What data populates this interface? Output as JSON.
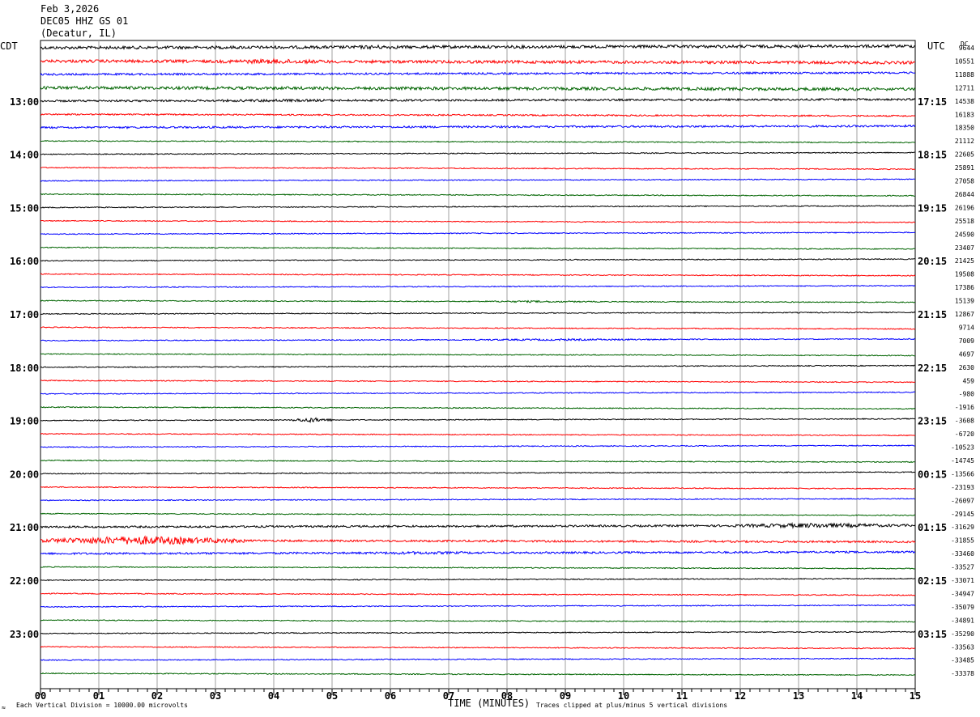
{
  "header": {
    "date": "Feb 3,2026",
    "station": "DEC05 HHZ GS 01",
    "location": "(Decatur, IL)"
  },
  "left_zone": "CDT",
  "right_zone": "UTC",
  "dc_label": "DC",
  "footer": {
    "scale_note": "Each Vertical Division = 10000.00 microvolts",
    "clip_note": "Traces clipped at plus/minus 5 vertical divisions",
    "credit_glyph": "≈"
  },
  "colors": {
    "trace_cycle": [
      "#000000",
      "#ff0000",
      "#0000ff",
      "#006400"
    ],
    "grid": "#a0a0a0"
  },
  "chart_data": {
    "type": "line",
    "title": "DEC05 HHZ GS 01",
    "xlabel": "TIME (MINUTES)",
    "ylabel": "",
    "xlim": [
      0,
      15
    ],
    "x_ticks": [
      "00",
      "01",
      "02",
      "03",
      "04",
      "05",
      "06",
      "07",
      "08",
      "09",
      "10",
      "11",
      "12",
      "13",
      "14",
      "15"
    ],
    "left_hour_labels": [
      "13:00",
      "14:00",
      "15:00",
      "16:00",
      "17:00",
      "18:00",
      "19:00",
      "20:00",
      "21:00",
      "22:00",
      "23:00"
    ],
    "right_hour_labels": [
      "17:15",
      "18:15",
      "19:15",
      "20:15",
      "21:15",
      "22:15",
      "23:15",
      "00:15",
      "01:15",
      "02:15",
      "03:15"
    ],
    "dc_offsets": [
      "9644",
      "10551",
      "11888",
      "12711",
      "14538",
      "16183",
      "18350",
      "21112",
      "22605",
      "25891",
      "27058",
      "26844",
      "26196",
      "25518",
      "24590",
      "23407",
      "21425",
      "19508",
      "17386",
      "15139",
      "12867",
      "9714",
      "7009",
      "4697",
      "2630",
      "459",
      "-980",
      "-1916",
      "-3608",
      "-6720",
      "-10523",
      "-14745",
      "-13566",
      "-23193",
      "-26097",
      "-29145",
      "-31629",
      "-31855",
      "-33460",
      "-33527",
      "-33071",
      "-34947",
      "-35079",
      "-34891",
      "-35290",
      "-33563",
      "-33485",
      "-33378"
    ],
    "trace_amplitude": [
      3,
      3,
      2,
      3,
      2,
      1.5,
      2,
      1,
      1,
      1,
      1,
      1,
      1,
      1,
      1,
      1,
      1,
      1,
      1,
      1,
      1,
      1,
      1,
      1,
      1,
      1,
      1,
      1,
      1,
      1,
      1,
      1,
      1,
      1,
      1,
      1,
      2,
      2,
      2,
      1,
      1,
      1,
      1,
      1,
      1,
      1,
      1,
      1
    ],
    "events": [
      {
        "trace": 0,
        "start_min": 4.5,
        "end_min": 7.0,
        "amplitude": 4
      },
      {
        "trace": 1,
        "start_min": 2.5,
        "end_min": 5.5,
        "amplitude": 5
      },
      {
        "trace": 3,
        "start_min": 0.0,
        "end_min": 15.0,
        "amplitude": 3
      },
      {
        "trace": 4,
        "start_min": 2.0,
        "end_min": 6.0,
        "amplitude": 3
      },
      {
        "trace": 28,
        "start_min": 4.3,
        "end_min": 5.0,
        "amplitude": 5
      },
      {
        "trace": 36,
        "start_min": 11.5,
        "end_min": 15.0,
        "amplitude": 5
      },
      {
        "trace": 37,
        "start_min": 0.0,
        "end_min": 3.5,
        "amplitude": 9
      },
      {
        "trace": 38,
        "start_min": 4.5,
        "end_min": 8.5,
        "amplitude": 3
      },
      {
        "trace": 19,
        "start_min": 7.0,
        "end_min": 10.0,
        "amplitude": 2
      },
      {
        "trace": 22,
        "start_min": 6.0,
        "end_min": 12.0,
        "amplitude": 2
      }
    ]
  }
}
